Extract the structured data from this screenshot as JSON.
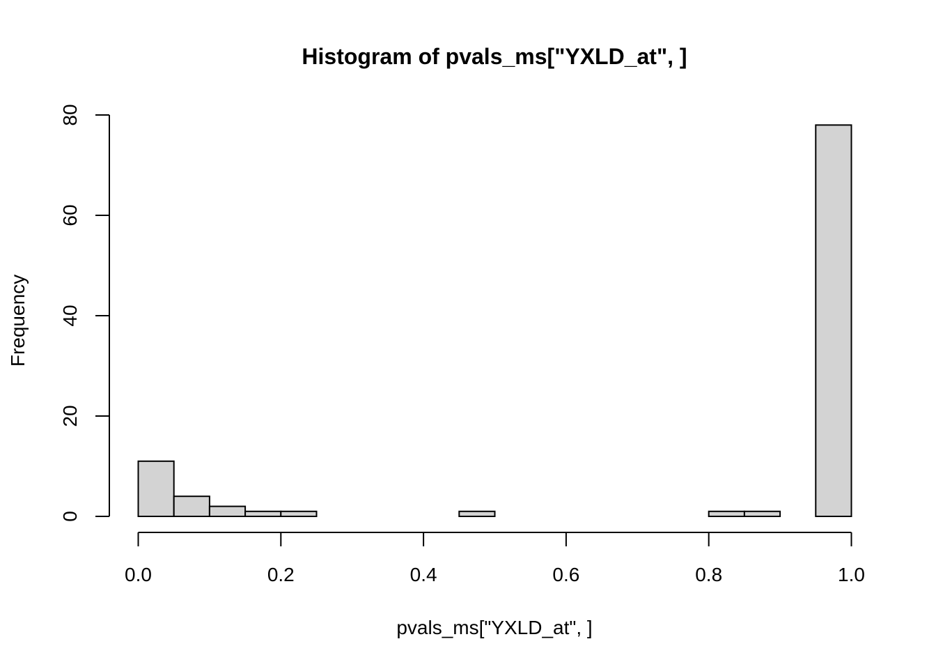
{
  "chart_data": {
    "type": "histogram",
    "title": "Histogram of pvals_ms[\"YXLD_at\", ]",
    "xlabel": "pvals_ms[\"YXLD_at\", ]",
    "ylabel": "Frequency",
    "xlim": [
      0,
      1
    ],
    "ylim": [
      0,
      80
    ],
    "x_ticks": [
      "0.0",
      "0.2",
      "0.4",
      "0.6",
      "0.8",
      "1.0"
    ],
    "y_ticks": [
      "0",
      "20",
      "40",
      "60",
      "80"
    ],
    "bin_width": 0.05,
    "bins": [
      {
        "start": 0.0,
        "end": 0.05,
        "count": 11
      },
      {
        "start": 0.05,
        "end": 0.1,
        "count": 4
      },
      {
        "start": 0.1,
        "end": 0.15,
        "count": 2
      },
      {
        "start": 0.15,
        "end": 0.2,
        "count": 1
      },
      {
        "start": 0.2,
        "end": 0.25,
        "count": 1
      },
      {
        "start": 0.25,
        "end": 0.3,
        "count": 0
      },
      {
        "start": 0.3,
        "end": 0.35,
        "count": 0
      },
      {
        "start": 0.35,
        "end": 0.4,
        "count": 0
      },
      {
        "start": 0.4,
        "end": 0.45,
        "count": 0
      },
      {
        "start": 0.45,
        "end": 0.5,
        "count": 1
      },
      {
        "start": 0.5,
        "end": 0.55,
        "count": 0
      },
      {
        "start": 0.55,
        "end": 0.6,
        "count": 0
      },
      {
        "start": 0.6,
        "end": 0.65,
        "count": 0
      },
      {
        "start": 0.65,
        "end": 0.7,
        "count": 0
      },
      {
        "start": 0.7,
        "end": 0.75,
        "count": 0
      },
      {
        "start": 0.75,
        "end": 0.8,
        "count": 0
      },
      {
        "start": 0.8,
        "end": 0.85,
        "count": 1
      },
      {
        "start": 0.85,
        "end": 0.9,
        "count": 1
      },
      {
        "start": 0.9,
        "end": 0.95,
        "count": 0
      },
      {
        "start": 0.95,
        "end": 1.0,
        "count": 78
      }
    ],
    "bar_fill": "#d3d3d3",
    "bar_stroke": "#000000",
    "grid": false
  }
}
